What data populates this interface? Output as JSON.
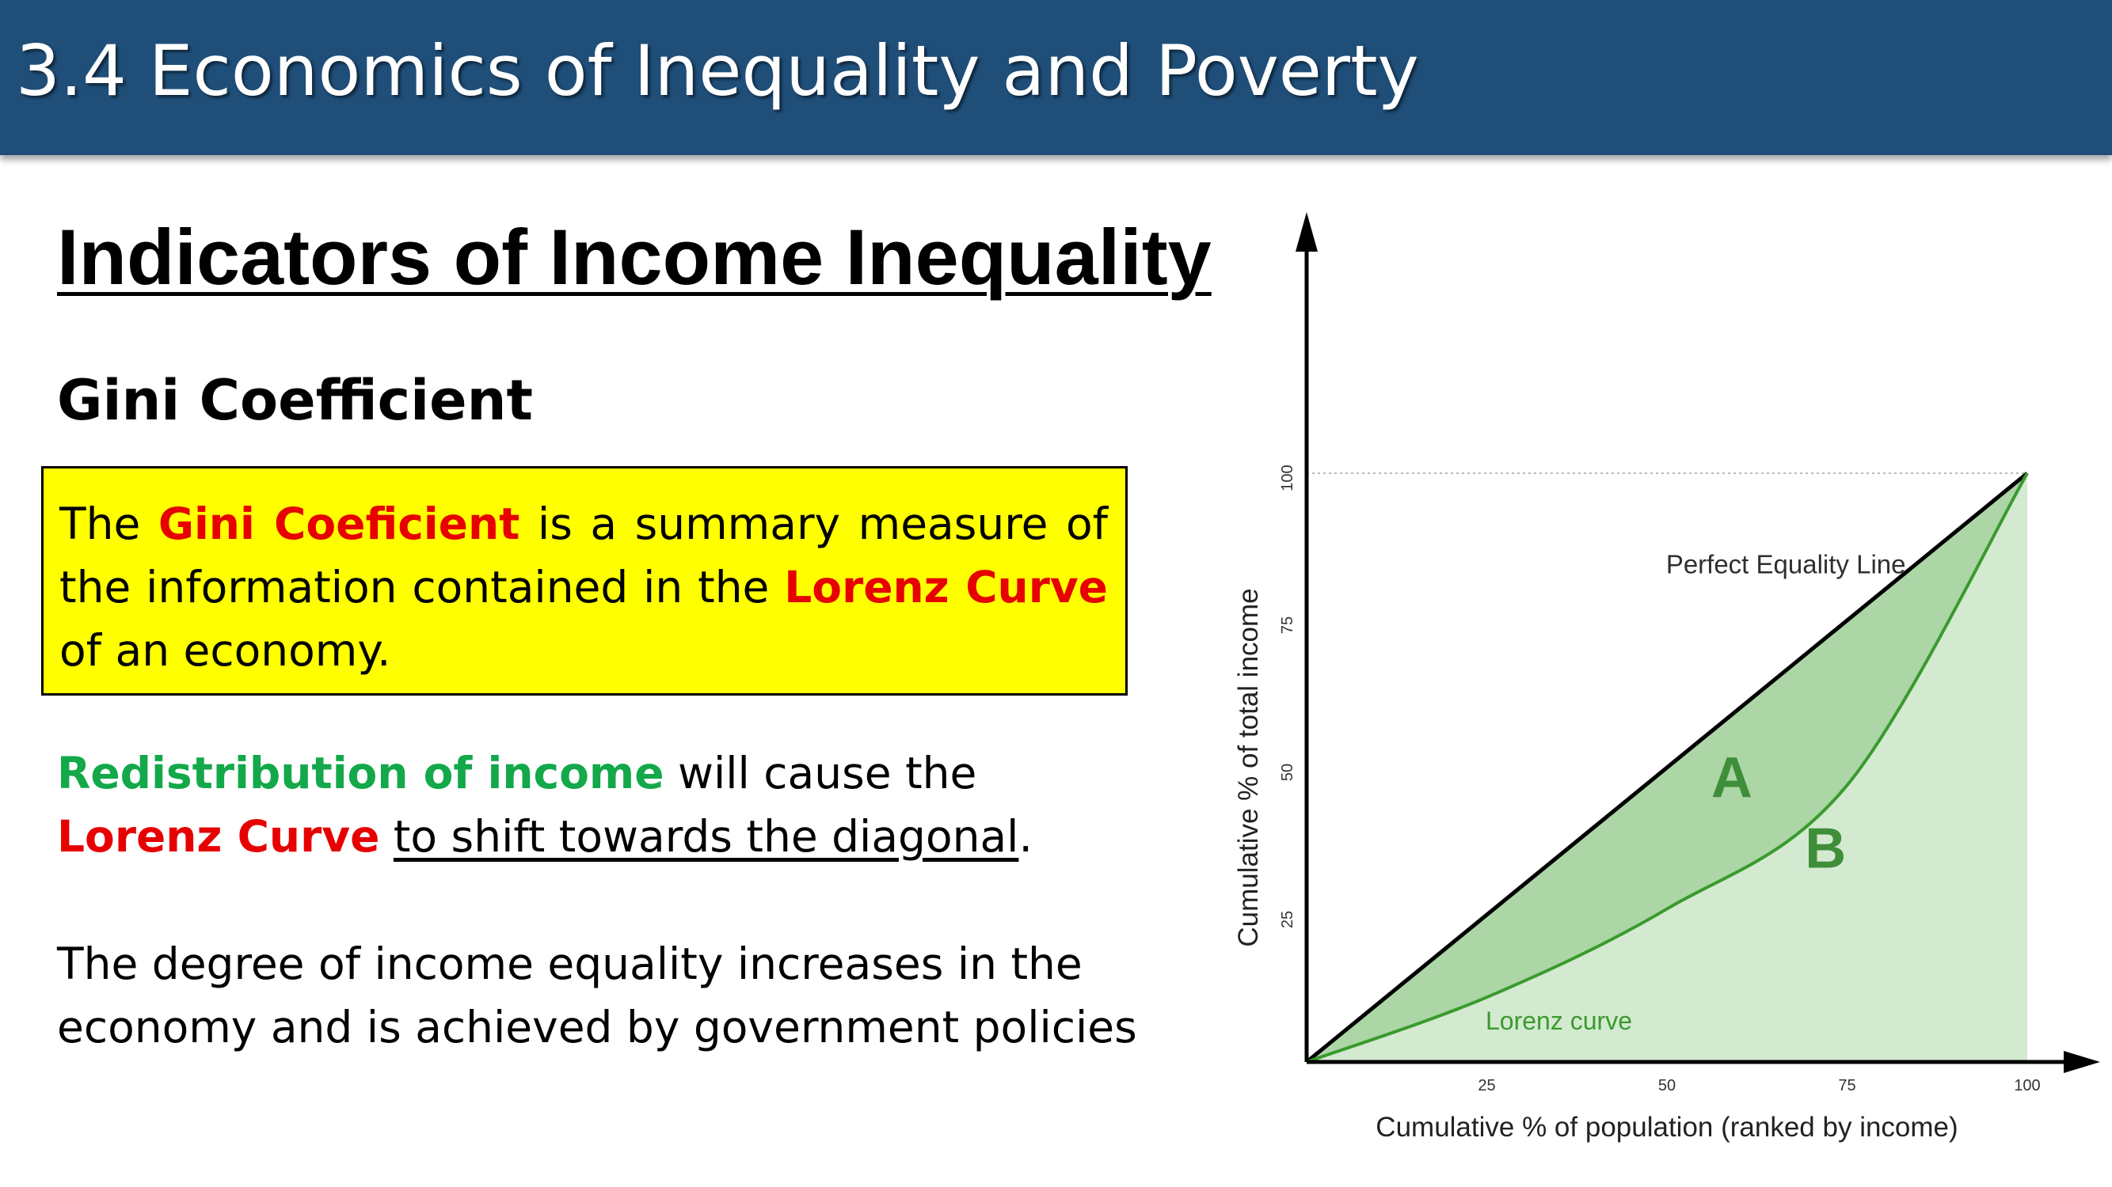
{
  "slide": {
    "title": "3.4 Economics of Inequality and Poverty",
    "heading": "Indicators of Income Inequality",
    "subheading": "Gini Coefficient",
    "definition": {
      "part1": "The ",
      "term1": "Gini Coeficient",
      "part2": " is a summary measure of the information contained in the ",
      "term2": "Lorenz Curve",
      "part3": " of an economy."
    },
    "redistribution": {
      "term1": "Redistribution of income",
      "part1": " will cause the",
      "term2": "Lorenz Curve",
      "underlined": "to shift towards the diagonal",
      "period": "."
    },
    "degree_text": {
      "line1": "The degree of income equality increases in the",
      "line2": "economy and is achieved by government policies"
    }
  },
  "chart_data": {
    "type": "line",
    "x": [
      0,
      25,
      50,
      75,
      100
    ],
    "series": [
      {
        "name": "Perfect Equality Line",
        "values": [
          0,
          25,
          50,
          75,
          100
        ]
      },
      {
        "name": "Lorenz curve",
        "values": [
          0,
          11,
          26,
          47,
          100
        ]
      }
    ],
    "x_ticks": [
      "25",
      "50",
      "75",
      "100"
    ],
    "y_ticks": [
      "25",
      "50",
      "75",
      "100"
    ],
    "xlabel": "Cumulative % of population (ranked by income)",
    "ylabel": "Cumulative % of total income",
    "xlim": [
      0,
      100
    ],
    "ylim": [
      0,
      100
    ],
    "region_labels": [
      "A",
      "B"
    ],
    "colors": {
      "equality_line": "#000000",
      "lorenz_line": "#3a9a2e",
      "area_a": "#acd6a6",
      "area_b": "#d3ead0",
      "region_label": "#3e8e3a",
      "annotation": "#2f2f2f"
    }
  }
}
